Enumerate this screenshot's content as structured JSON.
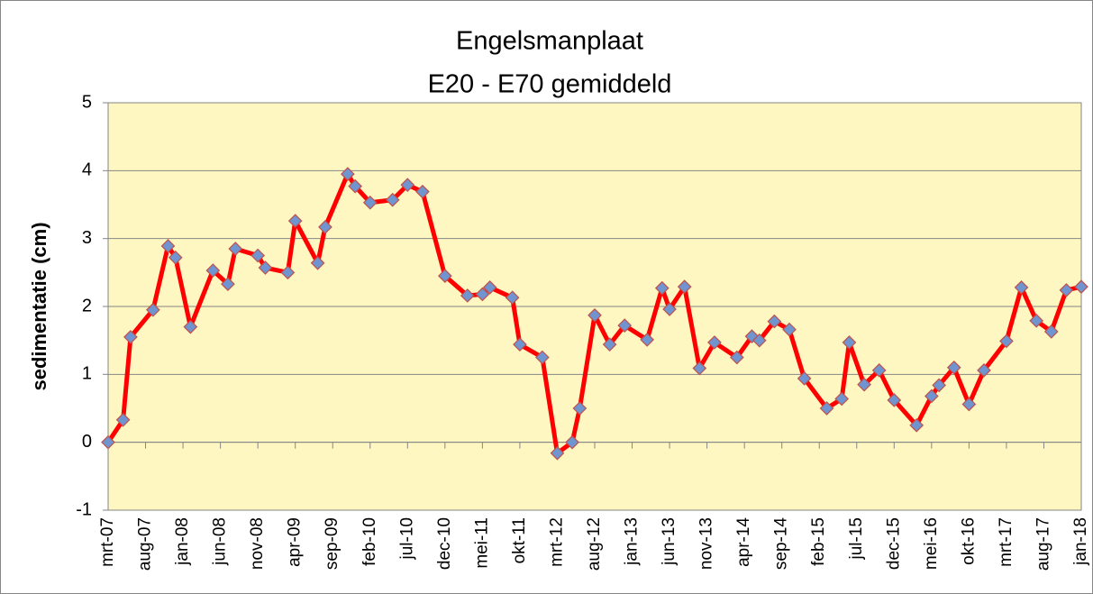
{
  "chart_data": {
    "type": "line",
    "title": "Engelsmanplaat",
    "subtitle": "E20 - E70 gemiddeld",
    "ylabel": "sedimentatie (cm)",
    "x": [
      "2007-03",
      "2007-05",
      "2007-06",
      "2007-09",
      "2007-11",
      "2007-12",
      "2008-02",
      "2008-05",
      "2008-07",
      "2008-08",
      "2008-11",
      "2008-12",
      "2009-03",
      "2009-04",
      "2009-07",
      "2009-08",
      "2009-11",
      "2009-12",
      "2010-02",
      "2010-05",
      "2010-07",
      "2010-09",
      "2010-12",
      "2011-03",
      "2011-05",
      "2011-06",
      "2011-09",
      "2011-10",
      "2012-01",
      "2012-03",
      "2012-05",
      "2012-06",
      "2012-08",
      "2012-10",
      "2012-12",
      "2013-03",
      "2013-05",
      "2013-06",
      "2013-08",
      "2013-10",
      "2013-12",
      "2014-03",
      "2014-05",
      "2014-06",
      "2014-08",
      "2014-10",
      "2014-12",
      "2015-03",
      "2015-05",
      "2015-06",
      "2015-08",
      "2015-10",
      "2015-12",
      "2016-03",
      "2016-05",
      "2016-06",
      "2016-08",
      "2016-10",
      "2016-12",
      "2017-03",
      "2017-05",
      "2017-07",
      "2017-09",
      "2017-11",
      "2018-01"
    ],
    "values": [
      0,
      0.33,
      1.55,
      1.95,
      2.89,
      2.72,
      1.7,
      2.53,
      2.33,
      2.85,
      2.75,
      2.57,
      2.5,
      3.26,
      2.64,
      3.17,
      3.95,
      3.77,
      3.53,
      3.57,
      3.79,
      3.69,
      2.45,
      2.16,
      2.18,
      2.28,
      2.13,
      1.44,
      1.25,
      -0.16,
      0,
      0.5,
      1.87,
      1.44,
      1.72,
      1.51,
      2.27,
      1.96,
      2.29,
      1.09,
      1.47,
      1.25,
      1.56,
      1.5,
      1.78,
      1.66,
      0.94,
      0.5,
      0.64,
      1.47,
      0.85,
      1.06,
      0.62,
      0.25,
      0.68,
      0.84,
      1.1,
      0.56,
      1.06,
      1.49,
      2.28,
      1.79,
      1.63,
      2.24,
      2.29
    ],
    "color": "#ff0000",
    "marker_color": "#7094cf",
    "marker_edge_color": "#c0504d",
    "background": "#fff7c2",
    "xlim": [
      "2007-03",
      "2018-01"
    ],
    "xticks": [
      {
        "value": "2007-03",
        "label": "mrt-07"
      },
      {
        "value": "2007-08",
        "label": "aug-07"
      },
      {
        "value": "2008-01",
        "label": "jan-08"
      },
      {
        "value": "2008-06",
        "label": "jun-08"
      },
      {
        "value": "2008-11",
        "label": "nov-08"
      },
      {
        "value": "2009-04",
        "label": "apr-09"
      },
      {
        "value": "2009-09",
        "label": "sep-09"
      },
      {
        "value": "2010-02",
        "label": "feb-10"
      },
      {
        "value": "2010-07",
        "label": "jul-10"
      },
      {
        "value": "2010-12",
        "label": "dec-10"
      },
      {
        "value": "2011-05",
        "label": "mei-11"
      },
      {
        "value": "2011-10",
        "label": "okt-11"
      },
      {
        "value": "2012-03",
        "label": "mrt-12"
      },
      {
        "value": "2012-08",
        "label": "aug-12"
      },
      {
        "value": "2013-01",
        "label": "jan-13"
      },
      {
        "value": "2013-06",
        "label": "jun-13"
      },
      {
        "value": "2013-11",
        "label": "nov-13"
      },
      {
        "value": "2014-04",
        "label": "apr-14"
      },
      {
        "value": "2014-09",
        "label": "sep-14"
      },
      {
        "value": "2015-02",
        "label": "feb-15"
      },
      {
        "value": "2015-07",
        "label": "jul-15"
      },
      {
        "value": "2015-12",
        "label": "dec-15"
      },
      {
        "value": "2016-05",
        "label": "mei-16"
      },
      {
        "value": "2016-10",
        "label": "okt-16"
      },
      {
        "value": "2017-03",
        "label": "mrt-17"
      },
      {
        "value": "2017-08",
        "label": "aug-17"
      },
      {
        "value": "2018-01",
        "label": "jan-18"
      }
    ],
    "ylim": [
      -1,
      5
    ],
    "yticks": [
      -1,
      0,
      1,
      2,
      3,
      4,
      5
    ],
    "grid": true
  }
}
